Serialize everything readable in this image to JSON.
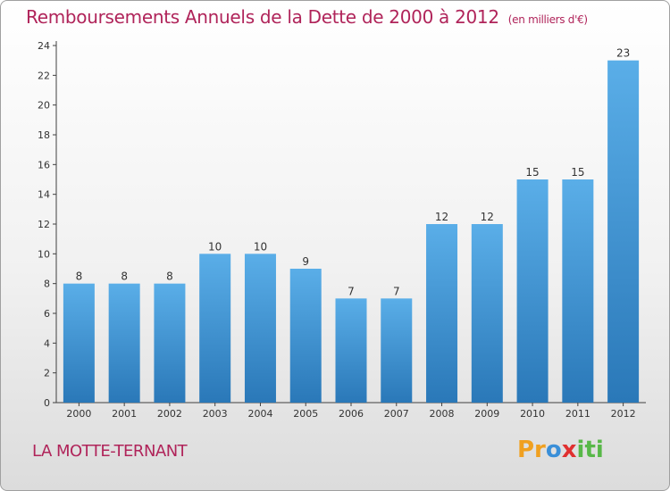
{
  "header": {
    "title": "Remboursements Annuels de la Dette de 2000 à 2012",
    "subtitle": "(en milliers d'€)"
  },
  "footer": {
    "place": "LA MOTTE-TERNANT",
    "logo": "Proxiti"
  },
  "colors": {
    "bar_top": "#5aaee8",
    "bar_bottom": "#2a78b8",
    "title": "#b0245a"
  },
  "chart_data": {
    "type": "bar",
    "categories": [
      "2000",
      "2001",
      "2002",
      "2003",
      "2004",
      "2005",
      "2006",
      "2007",
      "2008",
      "2009",
      "2010",
      "2011",
      "2012"
    ],
    "values": [
      8,
      8,
      8,
      10,
      10,
      9,
      7,
      7,
      12,
      12,
      15,
      15,
      23
    ],
    "title": "Remboursements Annuels de la Dette de 2000 à 2012",
    "subtitle": "(en milliers d'€)",
    "xlabel": "",
    "ylabel": "",
    "ylim": [
      0,
      24
    ],
    "yticks": [
      0,
      2,
      4,
      6,
      8,
      10,
      12,
      14,
      16,
      18,
      20,
      22,
      24
    ],
    "grid": false,
    "legend": "none"
  }
}
